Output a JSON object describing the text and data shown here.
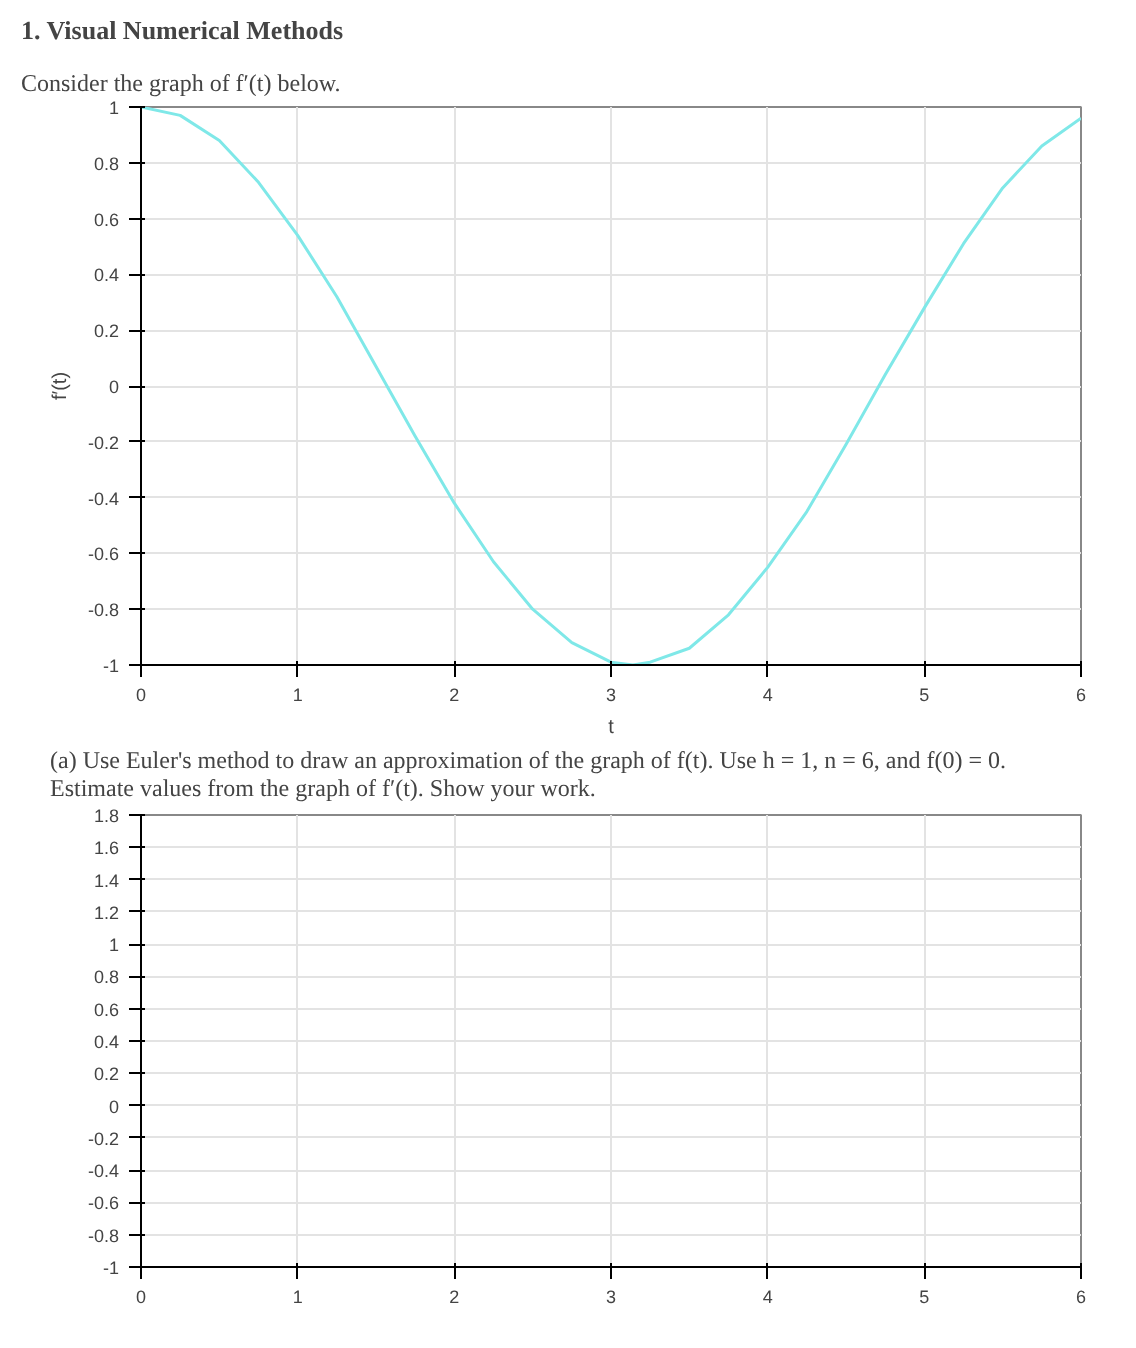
{
  "chart_data": [
    {
      "type": "line",
      "title": "1. Visual Numerical Methods",
      "subtitle": "Consider the graph of f′(t) below.",
      "xlabel": "t",
      "ylabel": "f′(t)",
      "xlim": [
        0,
        6
      ],
      "ylim": [
        -1,
        1
      ],
      "xticks": [
        0,
        1,
        2,
        3,
        4,
        5,
        6
      ],
      "yticks": [
        -1,
        -0.8,
        -0.6,
        -0.4,
        -0.2,
        0,
        0.2,
        0.4,
        0.6,
        0.8,
        1
      ],
      "grid": true,
      "x": [
        0,
        0.25,
        0.5,
        0.75,
        1,
        1.25,
        1.5,
        1.75,
        2,
        2.25,
        2.5,
        2.75,
        3,
        3.14,
        3.25,
        3.5,
        3.75,
        4,
        4.25,
        4.5,
        4.75,
        5,
        5.25,
        5.5,
        5.75,
        6
      ],
      "series": [
        {
          "color": "#7fe8e8",
          "values": [
            1,
            0.97,
            0.88,
            0.73,
            0.54,
            0.32,
            0.07,
            -0.18,
            -0.42,
            -0.63,
            -0.8,
            -0.92,
            -0.99,
            -1,
            -0.99,
            -0.94,
            -0.82,
            -0.65,
            -0.45,
            -0.21,
            0.04,
            0.28,
            0.51,
            0.71,
            0.86,
            0.96
          ]
        }
      ]
    },
    {
      "type": "line",
      "title": "(a) Use Euler's method to draw an approximation of the graph of f(t). Use h = 1, n = 6, and f(0) = 0. Estimate values from the graph of f′(t). Show your work.",
      "xlim": [
        0,
        6
      ],
      "ylim": [
        -1,
        1.8
      ],
      "xticks": [
        0,
        1,
        2,
        3,
        4,
        5,
        6
      ],
      "yticks": [
        -1,
        -0.8,
        -0.6,
        -0.4,
        -0.2,
        0,
        0.2,
        0.4,
        0.6,
        0.8,
        1,
        1.2,
        1.4,
        1.6,
        1.8
      ],
      "grid": true
    }
  ]
}
